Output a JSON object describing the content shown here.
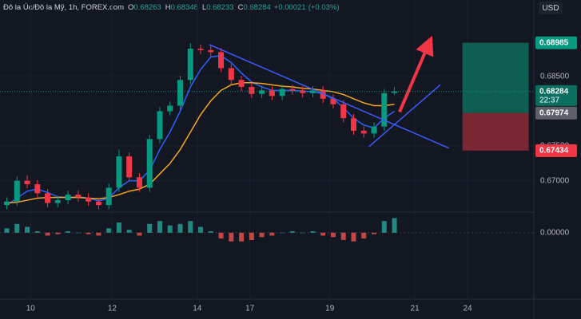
{
  "chart_data": {
    "type": "candlestick",
    "title": "Đô la Úc/Đô la Mỹ, 1h, FOREX.com",
    "ohlc_labels": [
      "O",
      "H",
      "L",
      "C"
    ],
    "change": {
      "value": 0.00021,
      "label": "+0.00021"
    },
    "change_pct": {
      "value": 0.03,
      "label": "(+0.03%)"
    },
    "currency": "USD",
    "countdown": "22:37",
    "x": [
      -14,
      -8,
      -2,
      4,
      10,
      16,
      22,
      28,
      34,
      40,
      46,
      52,
      58,
      64,
      70,
      76,
      82,
      88,
      94,
      100,
      106,
      112,
      118,
      124,
      130,
      136,
      142,
      148,
      154,
      160,
      166,
      172,
      178,
      184,
      190,
      196,
      202,
      208,
      214
    ],
    "open": [
      0.6665,
      0.667,
      0.67,
      0.6695,
      0.6682,
      0.6668,
      0.6672,
      0.668,
      0.6676,
      0.667,
      0.6665,
      0.669,
      0.6735,
      0.6705,
      0.669,
      0.676,
      0.68,
      0.6808,
      0.6845,
      0.689,
      0.6888,
      0.6885,
      0.6862,
      0.6845,
      0.6835,
      0.6825,
      0.683,
      0.6822,
      0.6832,
      0.683,
      0.6826,
      0.683,
      0.6818,
      0.681,
      0.679,
      0.6772,
      0.6768,
      0.6778,
      0.68263
    ],
    "high": [
      0.6676,
      0.6706,
      0.6708,
      0.6701,
      0.6688,
      0.6678,
      0.6686,
      0.6686,
      0.6682,
      0.6676,
      0.6696,
      0.6745,
      0.6741,
      0.6711,
      0.6766,
      0.6806,
      0.6814,
      0.6851,
      0.6898,
      0.6896,
      0.6895,
      0.6891,
      0.6868,
      0.6851,
      0.6841,
      0.6836,
      0.6836,
      0.6838,
      0.6838,
      0.6836,
      0.6836,
      0.6836,
      0.6824,
      0.6816,
      0.6796,
      0.6778,
      0.6784,
      0.6832,
      0.68348
    ],
    "low": [
      0.6659,
      0.6664,
      0.6689,
      0.6676,
      0.6662,
      0.6662,
      0.6666,
      0.667,
      0.6664,
      0.6659,
      0.6659,
      0.6684,
      0.6699,
      0.6684,
      0.6684,
      0.6754,
      0.6794,
      0.6802,
      0.6839,
      0.6882,
      0.6879,
      0.6856,
      0.6839,
      0.6829,
      0.6819,
      0.6819,
      0.6816,
      0.6816,
      0.6824,
      0.682,
      0.682,
      0.6812,
      0.6804,
      0.6784,
      0.6766,
      0.6762,
      0.6762,
      0.6772,
      0.68233
    ],
    "close": [
      0.667,
      0.67,
      0.6695,
      0.6682,
      0.6668,
      0.6672,
      0.668,
      0.6676,
      0.667,
      0.6665,
      0.669,
      0.6735,
      0.6705,
      0.669,
      0.676,
      0.68,
      0.6808,
      0.6845,
      0.689,
      0.6888,
      0.6885,
      0.6862,
      0.6845,
      0.6835,
      0.6825,
      0.683,
      0.6822,
      0.6832,
      0.683,
      0.6826,
      0.683,
      0.6818,
      0.681,
      0.679,
      0.6772,
      0.6768,
      0.6778,
      0.6826,
      0.68284
    ],
    "up_color": "#089981",
    "down_color": "#f23645",
    "series": [
      {
        "color": "#2962ff",
        "values": [
          0.6665,
          0.6675,
          0.6685,
          0.6688,
          0.6683,
          0.6677,
          0.6676,
          0.6677,
          0.6675,
          0.6671,
          0.6675,
          0.669,
          0.67,
          0.67,
          0.6715,
          0.6745,
          0.677,
          0.68,
          0.6835,
          0.686,
          0.6878,
          0.688,
          0.687,
          0.6855,
          0.6842,
          0.6835,
          0.683,
          0.683,
          0.683,
          0.6829,
          0.6828,
          0.6825,
          0.6818,
          0.6805,
          0.679,
          0.678,
          0.6776,
          0.679,
          0.68
        ]
      },
      {
        "color": "#f5a623",
        "values": [
          0.6668,
          0.6669,
          0.6672,
          0.6675,
          0.6676,
          0.6676,
          0.6676,
          0.6676,
          0.6675,
          0.6674,
          0.6676,
          0.668,
          0.6685,
          0.6688,
          0.6695,
          0.671,
          0.6725,
          0.6745,
          0.677,
          0.6795,
          0.6815,
          0.683,
          0.6838,
          0.6841,
          0.6841,
          0.684,
          0.6838,
          0.6836,
          0.6835,
          0.6833,
          0.6832,
          0.683,
          0.6828,
          0.6824,
          0.6818,
          0.6812,
          0.6808,
          0.6808,
          0.681
        ]
      }
    ],
    "histogram": [
      0.0003,
      0.0006,
      0.0004,
      0.0001,
      -0.0002,
      -0.0001,
      0.0001,
      0.0,
      -0.0001,
      -0.0002,
      0.0003,
      0.0007,
      0.0002,
      -0.0002,
      0.0006,
      0.0008,
      0.0005,
      0.0006,
      0.0008,
      0.0004,
      0.0001,
      -0.0004,
      -0.0006,
      -0.0006,
      -0.0005,
      -0.0003,
      -0.0002,
      0.0,
      0.0001,
      0.0,
      0.0001,
      -0.0002,
      -0.0003,
      -0.0005,
      -0.0006,
      -0.0004,
      -0.0001,
      0.0008,
      0.001
    ],
    "xlim": [
      -18,
      296
    ],
    "xticks": [
      {
        "value": 0,
        "label": "10"
      },
      {
        "value": 48,
        "label": "12"
      },
      {
        "value": 98,
        "label": "14"
      },
      {
        "value": 129,
        "label": "17"
      },
      {
        "value": 176,
        "label": "19"
      },
      {
        "value": 226,
        "label": "21"
      },
      {
        "value": 257,
        "label": "24"
      }
    ],
    "ylim": [
      0.6656,
      0.696
    ],
    "yticks": [
      {
        "value": 0.685,
        "label": "0.68500"
      },
      {
        "value": 0.675,
        "label": "0.67500"
      },
      {
        "value": 0.67,
        "label": "0.67000"
      }
    ],
    "y2lim": [
      -0.004,
      0.0013
    ],
    "y2ticks": [
      {
        "value": 0,
        "label": "0.00000"
      }
    ],
    "position": {
      "target": 0.68985,
      "entry": 0.67974,
      "stop": 0.67434,
      "x": [
        254,
        293
      ]
    },
    "trendlines": [
      {
        "x": [
          105,
          246
        ],
        "y": [
          0.6896,
          0.6747
        ],
        "color": "#3d5afe",
        "arrow": false
      },
      {
        "x": [
          199,
          241
        ],
        "y": [
          0.6749,
          0.6838
        ],
        "color": "#3d5afe",
        "arrow": false
      },
      {
        "x": [
          217,
          234
        ],
        "y": [
          0.6799,
          0.6896
        ],
        "color": "#f23645",
        "arrow": true
      }
    ],
    "grid": true
  }
}
